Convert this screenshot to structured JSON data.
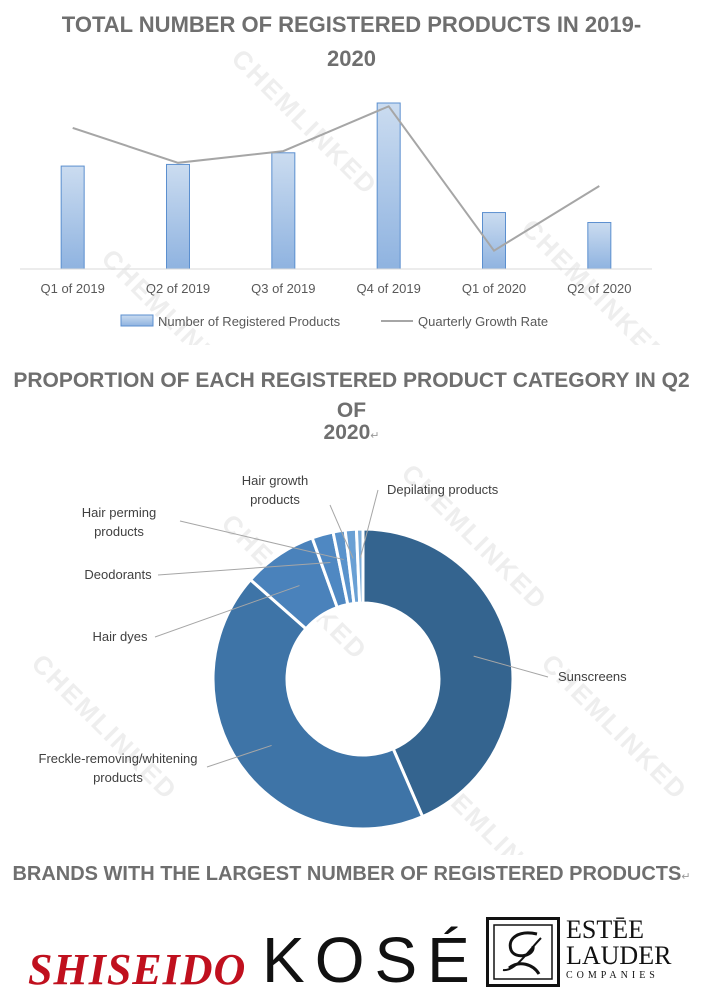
{
  "titles": {
    "chart1_line1": "TOTAL NUMBER OF REGISTERED PRODUCTS IN 2019-",
    "chart1_line2": "2020",
    "chart2_line1": "PROPORTION OF EACH REGISTERED PRODUCT CATEGORY IN Q2 OF",
    "chart2_line2": "2020",
    "brands": "BRANDS WITH THE LARGEST NUMBER OF REGISTERED PRODUCTS"
  },
  "watermark": "CHEMLINKED",
  "chart_data": [
    {
      "type": "bar",
      "title": "TOTAL NUMBER OF REGISTERED PRODUCTS IN 2019-2020",
      "categories": [
        "Q1 of 2019",
        "Q2 of 2019",
        "Q3 of 2019",
        "Q4 of 2019",
        "Q1 of 2020",
        "Q2 of 2020"
      ],
      "series": [
        {
          "name": "Number of Registered Products",
          "kind": "bar",
          "values": [
            62,
            63,
            70,
            100,
            34,
            28
          ]
        },
        {
          "name": "Quarterly Growth Rate",
          "kind": "line",
          "values": [
            85,
            64,
            71,
            98,
            11,
            50
          ]
        }
      ],
      "ylim": [
        0,
        100
      ],
      "grid": false,
      "legend": "bottom",
      "colors": {
        "bar_fill_top": "#cbdcf0",
        "bar_fill_bottom": "#8fb3e0",
        "bar_stroke": "#5b8fcf",
        "line": "#a6a6a6"
      }
    },
    {
      "type": "pie",
      "donut": true,
      "title": "PROPORTION OF EACH REGISTERED PRODUCT CATEGORY IN Q2 OF 2020",
      "categories": [
        "Sunscreens",
        "Freckle-removing/whitening products",
        "Hair dyes",
        "Deodorants",
        "Hair perming products",
        "Hair growth products",
        "Depilating products"
      ],
      "values": [
        43.5,
        43.0,
        8.0,
        2.3,
        1.3,
        1.2,
        0.7
      ],
      "colors": [
        "#34648f",
        "#3e74a7",
        "#4a82bb",
        "#4f88c2",
        "#5a93cc",
        "#6aa0d4",
        "#7bacd9"
      ],
      "legend": "none"
    }
  ],
  "brands": [
    {
      "name": "SHISEIDO",
      "color": "#c0101e"
    },
    {
      "name": "KOSÉ",
      "color": "#111111"
    },
    {
      "name": "ESTĒE LAUDER",
      "sub": "COMPANIES",
      "color": "#111111"
    }
  ]
}
